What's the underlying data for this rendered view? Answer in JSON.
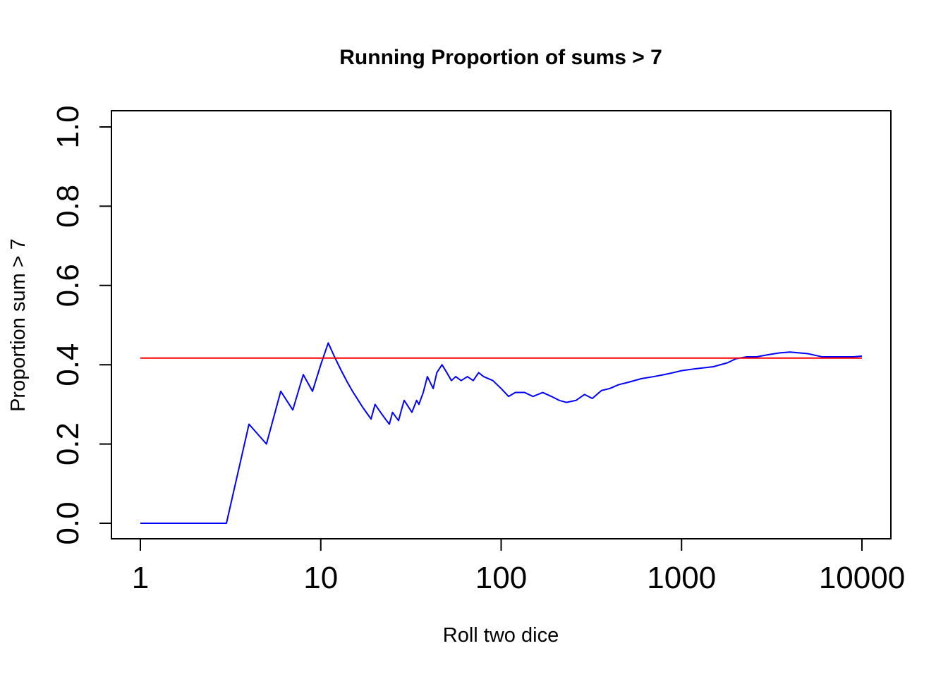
{
  "chart_data": {
    "type": "line",
    "title": "Running Proportion of sums > 7",
    "xlabel": "Roll two dice",
    "ylabel": "Proportion sum > 7",
    "x_scale": "log",
    "xlim": [
      1,
      10000
    ],
    "ylim": [
      0,
      1
    ],
    "x_ticks": [
      1,
      10,
      100,
      1000,
      10000
    ],
    "x_tick_labels": [
      "1",
      "10",
      "100",
      "1000",
      "10000"
    ],
    "y_ticks": [
      0,
      0.2,
      0.4,
      0.6,
      0.8,
      1
    ],
    "y_tick_labels": [
      "0.0",
      "0.2",
      "0.4",
      "0.6",
      "0.8",
      "1.0"
    ],
    "grid": false,
    "series": [
      {
        "color": "#0000ff",
        "x": [
          1,
          2,
          3,
          4,
          5,
          6,
          7,
          8,
          9,
          10,
          11,
          12,
          13,
          14,
          15,
          16,
          17,
          18,
          19,
          20,
          21,
          22,
          23,
          24,
          25,
          26,
          27,
          28,
          29,
          30,
          32,
          34,
          35,
          37,
          39,
          42,
          44,
          47,
          50,
          53,
          56,
          60,
          65,
          70,
          75,
          80,
          90,
          100,
          110,
          120,
          135,
          150,
          170,
          190,
          210,
          230,
          260,
          290,
          320,
          360,
          400,
          450,
          500,
          600,
          700,
          800,
          900,
          1000,
          1200,
          1500,
          1800,
          2000,
          2300,
          2600,
          3000,
          3500,
          4000,
          5000,
          6000,
          7000,
          8000,
          9000,
          10000
        ],
        "y": [
          0,
          0,
          0,
          0.25,
          0.2,
          0.333,
          0.286,
          0.375,
          0.333,
          0.4,
          0.455,
          0.417,
          0.385,
          0.357,
          0.333,
          0.313,
          0.294,
          0.278,
          0.263,
          0.3,
          0.286,
          0.273,
          0.261,
          0.25,
          0.28,
          0.269,
          0.259,
          0.286,
          0.31,
          0.3,
          0.28,
          0.31,
          0.3,
          0.33,
          0.37,
          0.34,
          0.38,
          0.4,
          0.38,
          0.36,
          0.37,
          0.36,
          0.37,
          0.36,
          0.38,
          0.37,
          0.36,
          0.34,
          0.32,
          0.33,
          0.33,
          0.32,
          0.33,
          0.32,
          0.31,
          0.305,
          0.31,
          0.325,
          0.315,
          0.335,
          0.34,
          0.35,
          0.355,
          0.365,
          0.37,
          0.375,
          0.38,
          0.385,
          0.39,
          0.395,
          0.405,
          0.415,
          0.42,
          0.42,
          0.425,
          0.43,
          0.432,
          0.428,
          0.42,
          0.42,
          0.42,
          0.42,
          0.422
        ]
      },
      {
        "color": "#ff0000",
        "x": [
          1,
          10000
        ],
        "y": [
          0.4167,
          0.4167
        ]
      }
    ]
  }
}
